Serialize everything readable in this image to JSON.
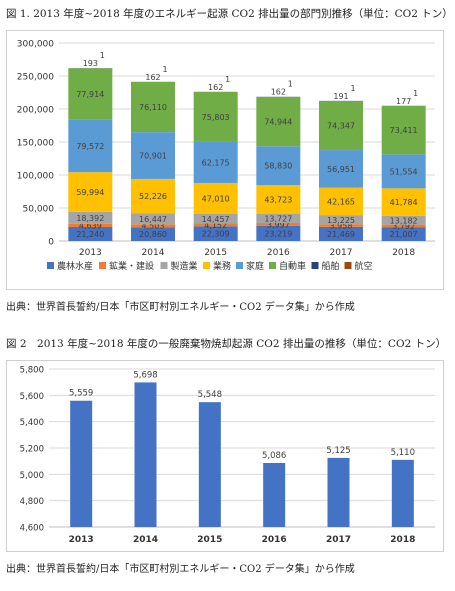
{
  "figure1": {
    "title": "図 1. 2013 年度~2018 年度のエネルギー起源 CO2 排出量の部門別推移（単位：CO2 トン）",
    "source": "出典：世界首長誓約/日本「市区町村別エネルギー・CO2 データ集」から作成"
  },
  "figure2": {
    "title": "図 2　2013 年度~2018 年度の一般廃棄物焼却起源 CO2 排出量の推移（単位：CO2 トン）",
    "source": "出典：世界首長誓約/日本「市区町村別エネルギー・CO2 データ集」から作成"
  },
  "chart_data": [
    {
      "type": "bar",
      "stacked": true,
      "categories": [
        "2013",
        "2014",
        "2015",
        "2016",
        "2017",
        "2018"
      ],
      "ylim": [
        0,
        300000
      ],
      "yticks": [
        "0",
        "50,000",
        "100,000",
        "150,000",
        "200,000",
        "250,000",
        "300,000"
      ],
      "grid": true,
      "legend_position": "bottom",
      "series": [
        {
          "name": "農林水産",
          "color": "#4472c4",
          "values": [
            21240,
            20860,
            22309,
            23219,
            21469,
            21007
          ],
          "labels": [
            "21,240",
            "20,860",
            "22,309",
            "23,219",
            "21,469",
            "21,007"
          ]
        },
        {
          "name": "鉱業・建設",
          "color": "#ed7d31",
          "values": [
            4639,
            4503,
            4152,
            3997,
            3958,
            3792
          ],
          "labels": [
            "4,639",
            "4,503",
            "4,152",
            "3,997",
            "3,958",
            "3,792"
          ]
        },
        {
          "name": "製造業",
          "color": "#a5a5a5",
          "values": [
            18392,
            16447,
            14457,
            13727,
            13225,
            13182
          ],
          "labels": [
            "18,392",
            "16,447",
            "14,457",
            "13,727",
            "13,225",
            "13,182"
          ]
        },
        {
          "name": "業務",
          "color": "#ffc000",
          "values": [
            59994,
            52226,
            47010,
            43723,
            42165,
            41784
          ],
          "labels": [
            "59,994",
            "52,226",
            "47,010",
            "43,723",
            "42,165",
            "41,784"
          ]
        },
        {
          "name": "家庭",
          "color": "#5b9bd5",
          "values": [
            79572,
            70901,
            62175,
            58830,
            56951,
            51554
          ],
          "labels": [
            "79,572",
            "70,901",
            "62,175",
            "58,830",
            "56,951",
            "51,554"
          ]
        },
        {
          "name": "自動車",
          "color": "#70ad47",
          "values": [
            77914,
            76110,
            75803,
            74944,
            74347,
            73411
          ],
          "labels": [
            "77,914",
            "76,110",
            "75,803",
            "74,944",
            "74,347",
            "73,411"
          ]
        },
        {
          "name": "船舶",
          "color": "#264478",
          "values": [
            193,
            162,
            162,
            162,
            191,
            177
          ],
          "labels": [
            "193",
            "162",
            "162",
            "162",
            "191",
            "177"
          ]
        },
        {
          "name": "航空",
          "color": "#9e480e",
          "values": [
            1,
            1,
            1,
            1,
            1,
            1
          ],
          "labels": [
            "1",
            "1",
            "1",
            "1",
            "1",
            "1"
          ]
        }
      ]
    },
    {
      "type": "bar",
      "categories": [
        "2013",
        "2014",
        "2015",
        "2016",
        "2017",
        "2018"
      ],
      "values": [
        5559,
        5698,
        5548,
        5086,
        5125,
        5110
      ],
      "labels": [
        "5,559",
        "5,698",
        "5,548",
        "5,086",
        "5,125",
        "5,110"
      ],
      "ylim": [
        4600,
        5800
      ],
      "yticks": [
        "4,600",
        "4,800",
        "5,000",
        "5,200",
        "5,400",
        "5,600",
        "5,800"
      ],
      "grid": true,
      "color": "#4472c4"
    }
  ]
}
